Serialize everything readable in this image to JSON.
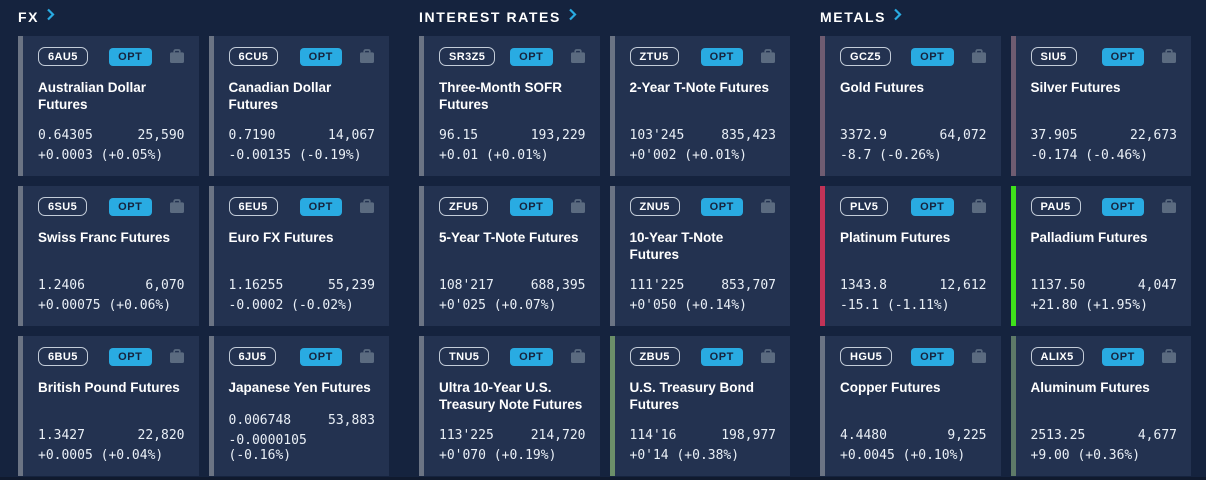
{
  "theme": {
    "page_bg": "#15233E",
    "card_bg": "#233250",
    "accent_cyan": "#29ABE2",
    "text_white": "#FFFFFF",
    "number_text": "#E9EFF6",
    "icon_gray": "#5B6B80",
    "stripe_gray": "#6B7484"
  },
  "sections": [
    {
      "title": "FX",
      "cards": [
        {
          "ticker": "6AU5",
          "opt_label": "OPT",
          "name": "Australian Dollar Futures",
          "price": "0.64305",
          "volume": "25,590",
          "change": "+0.0003 (+0.05%)",
          "stripe_color": "#6B7484"
        },
        {
          "ticker": "6CU5",
          "opt_label": "OPT",
          "name": "Canadian Dollar Futures",
          "price": "0.7190",
          "volume": "14,067",
          "change": "-0.00135 (-0.19%)",
          "stripe_color": "#6B7484"
        },
        {
          "ticker": "6SU5",
          "opt_label": "OPT",
          "name": "Swiss Franc Futures",
          "price": "1.2406",
          "volume": "6,070",
          "change": "+0.00075 (+0.06%)",
          "stripe_color": "#6B7484"
        },
        {
          "ticker": "6EU5",
          "opt_label": "OPT",
          "name": "Euro FX Futures",
          "price": "1.16255",
          "volume": "55,239",
          "change": "-0.0002 (-0.02%)",
          "stripe_color": "#6B7484"
        },
        {
          "ticker": "6BU5",
          "opt_label": "OPT",
          "name": "British Pound Futures",
          "price": "1.3427",
          "volume": "22,820",
          "change": "+0.0005 (+0.04%)",
          "stripe_color": "#6B7484"
        },
        {
          "ticker": "6JU5",
          "opt_label": "OPT",
          "name": "Japanese Yen Futures",
          "price": "0.006748",
          "volume": "53,883",
          "change": "-0.0000105 (-0.16%)",
          "stripe_color": "#6B7484"
        }
      ]
    },
    {
      "title": "INTEREST RATES",
      "cards": [
        {
          "ticker": "SR3Z5",
          "opt_label": "OPT",
          "name": "Three-Month SOFR Futures",
          "price": "96.15",
          "volume": "193,229",
          "change": "+0.01 (+0.01%)",
          "stripe_color": "#6B7484"
        },
        {
          "ticker": "ZTU5",
          "opt_label": "OPT",
          "name": "2-Year T-Note Futures",
          "price": "103'245",
          "volume": "835,423",
          "change": "+0'002 (+0.01%)",
          "stripe_color": "#6B7484"
        },
        {
          "ticker": "ZFU5",
          "opt_label": "OPT",
          "name": "5-Year T-Note Futures",
          "price": "108'217",
          "volume": "688,395",
          "change": "+0'025 (+0.07%)",
          "stripe_color": "#6B7484"
        },
        {
          "ticker": "ZNU5",
          "opt_label": "OPT",
          "name": "10-Year T-Note Futures",
          "price": "111'225",
          "volume": "853,707",
          "change": "+0'050 (+0.14%)",
          "stripe_color": "#6B7484"
        },
        {
          "ticker": "TNU5",
          "opt_label": "OPT",
          "name": "Ultra 10-Year U.S. Treasury Note Futures",
          "price": "113'225",
          "volume": "214,720",
          "change": "+0'070 (+0.19%)",
          "stripe_color": "#6B7484"
        },
        {
          "ticker": "ZBU5",
          "opt_label": "OPT",
          "name": "U.S. Treasury Bond Futures",
          "price": "114'16",
          "volume": "198,977",
          "change": "+0'14 (+0.38%)",
          "stripe_color": "#6C8F69"
        }
      ]
    },
    {
      "title": "METALS",
      "cards": [
        {
          "ticker": "GCZ5",
          "opt_label": "OPT",
          "name": "Gold Futures",
          "price": "3372.9",
          "volume": "64,072",
          "change": "-8.7 (-0.26%)",
          "stripe_color": "#6F5C71"
        },
        {
          "ticker": "SIU5",
          "opt_label": "OPT",
          "name": "Silver Futures",
          "price": "37.905",
          "volume": "22,673",
          "change": "-0.174 (-0.46%)",
          "stripe_color": "#6F5C71"
        },
        {
          "ticker": "PLV5",
          "opt_label": "OPT",
          "name": "Platinum Futures",
          "price": "1343.8",
          "volume": "12,612",
          "change": "-15.1 (-1.11%)",
          "stripe_color": "#C13357"
        },
        {
          "ticker": "PAU5",
          "opt_label": "OPT",
          "name": "Palladium Futures",
          "price": "1137.50",
          "volume": "4,047",
          "change": "+21.80 (+1.95%)",
          "stripe_color": "#3FE11B"
        },
        {
          "ticker": "HGU5",
          "opt_label": "OPT",
          "name": "Copper Futures",
          "price": "4.4480",
          "volume": "9,225",
          "change": "+0.0045 (+0.10%)",
          "stripe_color": "#6B7484"
        },
        {
          "ticker": "ALIX5",
          "opt_label": "OPT",
          "name": "Aluminum Futures",
          "price": "2513.25",
          "volume": "4,677",
          "change": "+9.00 (+0.36%)",
          "stripe_color": "#5E7A68"
        }
      ]
    }
  ]
}
